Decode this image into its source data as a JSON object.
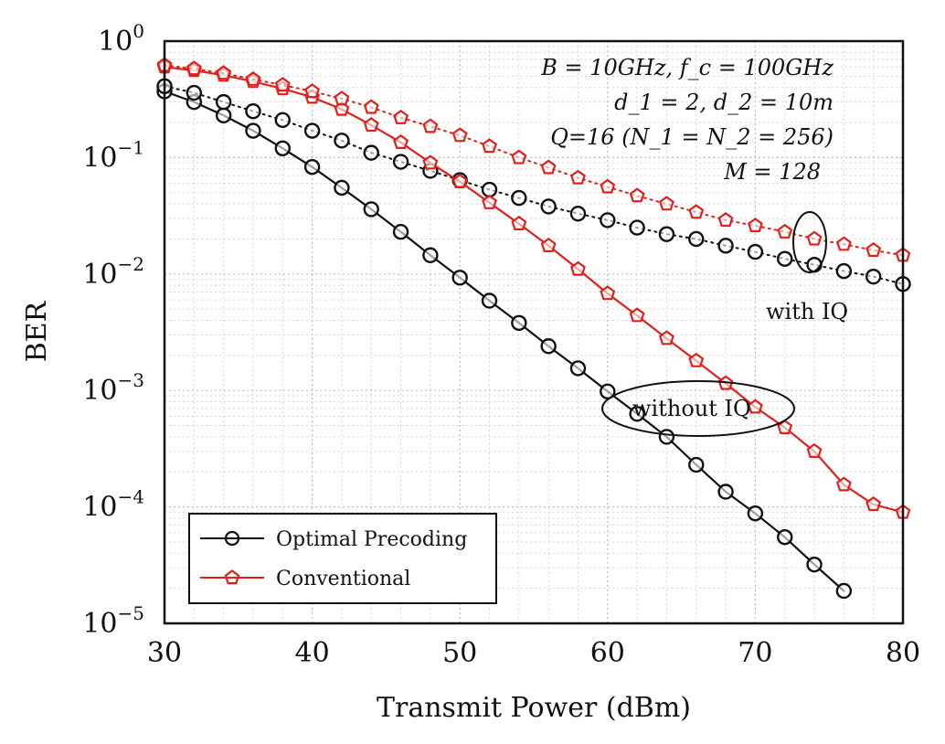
{
  "chart_data": {
    "type": "line",
    "title": "",
    "xlabel": "Transmit Power (dBm)",
    "ylabel": "BER",
    "xlim": [
      30,
      80
    ],
    "ylim": [
      1e-05,
      1
    ],
    "yscale": "log",
    "grid": true,
    "x_ticks": [
      "30",
      "40",
      "50",
      "60",
      "70",
      "80"
    ],
    "y_ticks": [
      {
        "base": "10",
        "exp": "0",
        "value": 1
      },
      {
        "base": "10",
        "exp": "−1",
        "value": 0.1
      },
      {
        "base": "10",
        "exp": "−2",
        "value": 0.01
      },
      {
        "base": "10",
        "exp": "−3",
        "value": 0.001
      },
      {
        "base": "10",
        "exp": "−4",
        "value": 0.0001
      },
      {
        "base": "10",
        "exp": "−5",
        "value": 1e-05
      }
    ],
    "annotations": {
      "params_line1": "B = 10GHz, f_c = 100GHz",
      "params_line2": "d_1 = 2, d_2 = 10m",
      "params_line3": "Q=16 (N_1 = N_2 = 256)",
      "params_line4": "M = 128",
      "with_iq": "with IQ",
      "without_iq": "without IQ"
    },
    "legend": {
      "position": "bottom-left",
      "entries": [
        {
          "label": "Optimal Precoding",
          "color": "#111111",
          "marker": "circle"
        },
        {
          "label": "Conventional",
          "color": "#e0201b",
          "marker": "pentagon"
        }
      ]
    },
    "series": [
      {
        "name": "Optimal Precoding (without IQ)",
        "color": "#111111",
        "marker": "circle",
        "line": "solid",
        "x": [
          30,
          32,
          34,
          36,
          38,
          40,
          42,
          44,
          46,
          48,
          50,
          52,
          54,
          56,
          58,
          60,
          62,
          64,
          66,
          68,
          70,
          72,
          74,
          76
        ],
        "y": [
          0.37,
          0.3,
          0.23,
          0.17,
          0.12,
          0.083,
          0.055,
          0.036,
          0.023,
          0.0145,
          0.0093,
          0.0059,
          0.0038,
          0.0024,
          0.00155,
          0.00098,
          0.00063,
          0.0004,
          0.00023,
          0.000135,
          8.8e-05,
          5.5e-05,
          3.2e-05,
          1.9e-05
        ]
      },
      {
        "name": "Optimal Precoding (with IQ)",
        "color": "#111111",
        "marker": "circle",
        "line": "dotted",
        "x": [
          30,
          32,
          34,
          36,
          38,
          40,
          42,
          44,
          46,
          48,
          50,
          52,
          54,
          56,
          58,
          60,
          62,
          64,
          66,
          68,
          70,
          72,
          74,
          76,
          78,
          80
        ],
        "y": [
          0.41,
          0.36,
          0.3,
          0.25,
          0.21,
          0.17,
          0.14,
          0.11,
          0.092,
          0.077,
          0.064,
          0.053,
          0.045,
          0.038,
          0.033,
          0.029,
          0.025,
          0.022,
          0.02,
          0.0175,
          0.0155,
          0.0135,
          0.012,
          0.0106,
          0.0095,
          0.0082
        ]
      },
      {
        "name": "Conventional (without IQ)",
        "color": "#e0201b",
        "marker": "pentagon",
        "line": "solid",
        "x": [
          30,
          32,
          34,
          36,
          38,
          40,
          42,
          44,
          46,
          48,
          50,
          52,
          54,
          56,
          58,
          60,
          62,
          64,
          66,
          68,
          70,
          72,
          74,
          76,
          78,
          80
        ],
        "y": [
          0.6,
          0.56,
          0.51,
          0.45,
          0.39,
          0.33,
          0.26,
          0.19,
          0.135,
          0.09,
          0.062,
          0.041,
          0.027,
          0.0175,
          0.011,
          0.0068,
          0.0044,
          0.0028,
          0.0018,
          0.00115,
          0.00072,
          0.00048,
          0.0003,
          0.000155,
          0.000105,
          9e-05
        ]
      },
      {
        "name": "Conventional (with IQ)",
        "color": "#e0201b",
        "marker": "pentagon",
        "line": "dotted",
        "x": [
          30,
          32,
          34,
          36,
          38,
          40,
          42,
          44,
          46,
          48,
          50,
          52,
          54,
          56,
          58,
          60,
          62,
          64,
          66,
          68,
          70,
          72,
          74,
          76,
          78,
          80
        ],
        "y": [
          0.62,
          0.58,
          0.53,
          0.47,
          0.42,
          0.37,
          0.32,
          0.27,
          0.22,
          0.185,
          0.155,
          0.125,
          0.1,
          0.082,
          0.067,
          0.056,
          0.047,
          0.04,
          0.034,
          0.029,
          0.026,
          0.023,
          0.02,
          0.018,
          0.016,
          0.0145
        ]
      }
    ]
  }
}
